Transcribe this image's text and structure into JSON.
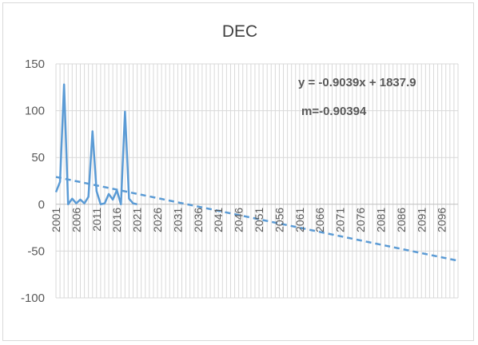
{
  "chart_data": {
    "type": "line",
    "title": "DEC",
    "xlabel": "",
    "ylabel": "",
    "ylim": [
      -100,
      150
    ],
    "y_ticks": [
      150,
      100,
      50,
      0,
      -50,
      -100
    ],
    "x_range": [
      2001,
      2100
    ],
    "x_tick_labels": [
      "2001",
      "2006",
      "2011",
      "2016",
      "2021",
      "2026",
      "2031",
      "2036",
      "2041",
      "2046",
      "2051",
      "2056",
      "2061",
      "2066",
      "2071",
      "2076",
      "2081",
      "2086",
      "2091",
      "2096"
    ],
    "grid": {
      "horizontal": true,
      "vertical": true
    },
    "legend": "none",
    "series": [
      {
        "style": "solid",
        "color": "#5b9bd5",
        "x": [
          2001,
          2002,
          2003,
          2004,
          2005,
          2006,
          2007,
          2008,
          2009,
          2010,
          2011,
          2012,
          2013,
          2014,
          2015,
          2016,
          2017,
          2018,
          2019,
          2020,
          2021
        ],
        "y": [
          13,
          24,
          128,
          0,
          6,
          1,
          5,
          1,
          8,
          78,
          14,
          0,
          1,
          11,
          5,
          15,
          0,
          99,
          6,
          1,
          0
        ]
      },
      {
        "style": "dashed",
        "color": "#5b9bd5",
        "trendline": true,
        "x": [
          2001,
          2100
        ],
        "y": [
          29.2,
          -60.3
        ]
      }
    ],
    "annotations": {
      "equation": "y = -0.9039x + 1837.9",
      "slope": "m=-0.90394"
    }
  }
}
